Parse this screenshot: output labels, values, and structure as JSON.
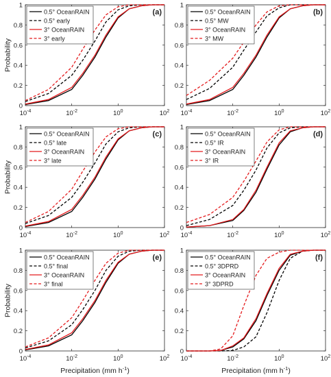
{
  "figure": {
    "xlabel": "Precipitation (mm h",
    "xlabel_sup": "-1",
    "xlabel_close": ")",
    "ylabel": "Probability"
  },
  "chart_data": [
    {
      "type": "line",
      "panel_label": "(a)",
      "xlabel": "",
      "ylabel": "Probability",
      "xscale": "log",
      "xlim": [
        0.0001,
        100
      ],
      "ylim": [
        0,
        1
      ],
      "xticks": [
        "10^-4",
        "10^-2",
        "10^0",
        "10^2"
      ],
      "yticks": [
        "0",
        "0.2",
        "0.4",
        "0.6",
        "0.8",
        "1"
      ],
      "legend_position": "top-left",
      "series": [
        {
          "name": "0.5° OceanRAIN",
          "color": "#000000",
          "dash": "solid",
          "x": [
            0.0001,
            0.001,
            0.01,
            0.03,
            0.1,
            0.3,
            1,
            3,
            10,
            30,
            100
          ],
          "y": [
            0.01,
            0.05,
            0.16,
            0.3,
            0.48,
            0.68,
            0.87,
            0.96,
            0.99,
            1.0,
            1.0
          ]
        },
        {
          "name": "0.5° early",
          "color": "#000000",
          "dash": "dashed",
          "x": [
            0.0001,
            0.001,
            0.01,
            0.03,
            0.1,
            0.3,
            1,
            3,
            10,
            30,
            100
          ],
          "y": [
            0.04,
            0.12,
            0.3,
            0.45,
            0.64,
            0.83,
            0.95,
            0.99,
            1.0,
            1.0,
            1.0
          ]
        },
        {
          "name": "3° OceanRAIN",
          "color": "#e41a1c",
          "dash": "solid",
          "x": [
            0.0001,
            0.001,
            0.01,
            0.03,
            0.1,
            0.3,
            1,
            3,
            10,
            30,
            100
          ],
          "y": [
            0.015,
            0.06,
            0.18,
            0.32,
            0.5,
            0.7,
            0.88,
            0.96,
            0.99,
            1.0,
            1.0
          ]
        },
        {
          "name": "3° early",
          "color": "#e41a1c",
          "dash": "dashed",
          "x": [
            0.0001,
            0.001,
            0.01,
            0.03,
            0.1,
            0.3,
            1,
            3,
            10,
            30,
            100
          ],
          "y": [
            0.05,
            0.16,
            0.38,
            0.56,
            0.75,
            0.9,
            0.98,
            1.0,
            1.0,
            1.0,
            1.0
          ]
        }
      ]
    },
    {
      "type": "line",
      "panel_label": "(b)",
      "xlabel": "",
      "ylabel": "",
      "xscale": "log",
      "xlim": [
        0.0001,
        100
      ],
      "ylim": [
        0,
        1
      ],
      "xticks": [
        "10^-4",
        "10^-2",
        "10^0",
        "10^2"
      ],
      "yticks": [
        "0",
        "0.2",
        "0.4",
        "0.6",
        "0.8",
        "1"
      ],
      "legend_position": "top-left",
      "series": [
        {
          "name": "0.5° OceanRAIN",
          "color": "#000000",
          "dash": "solid",
          "x": [
            0.0001,
            0.001,
            0.01,
            0.03,
            0.1,
            0.3,
            1,
            3,
            10,
            30,
            100
          ],
          "y": [
            0.01,
            0.05,
            0.16,
            0.3,
            0.48,
            0.68,
            0.87,
            0.96,
            0.99,
            1.0,
            1.0
          ]
        },
        {
          "name": "0.5° MW",
          "color": "#000000",
          "dash": "dashed",
          "x": [
            0.0001,
            0.001,
            0.01,
            0.03,
            0.1,
            0.3,
            1,
            3,
            10,
            30,
            100
          ],
          "y": [
            0.06,
            0.17,
            0.38,
            0.55,
            0.73,
            0.89,
            0.97,
            1.0,
            1.0,
            1.0,
            1.0
          ]
        },
        {
          "name": "3° OceanRAIN",
          "color": "#e41a1c",
          "dash": "solid",
          "x": [
            0.0001,
            0.001,
            0.01,
            0.03,
            0.1,
            0.3,
            1,
            3,
            10,
            30,
            100
          ],
          "y": [
            0.015,
            0.06,
            0.18,
            0.32,
            0.5,
            0.7,
            0.88,
            0.96,
            0.99,
            1.0,
            1.0
          ]
        },
        {
          "name": "3° MW",
          "color": "#e41a1c",
          "dash": "dashed",
          "x": [
            0.0001,
            0.001,
            0.01,
            0.03,
            0.1,
            0.3,
            1,
            3,
            10,
            30,
            100
          ],
          "y": [
            0.1,
            0.25,
            0.47,
            0.63,
            0.8,
            0.93,
            0.99,
            1.0,
            1.0,
            1.0,
            1.0
          ]
        }
      ]
    },
    {
      "type": "line",
      "panel_label": "(c)",
      "xlabel": "",
      "ylabel": "Probability",
      "xscale": "log",
      "xlim": [
        0.0001,
        100
      ],
      "ylim": [
        0,
        1
      ],
      "xticks": [
        "10^-4",
        "10^-2",
        "10^0",
        "10^2"
      ],
      "yticks": [
        "0",
        "0.2",
        "0.4",
        "0.6",
        "0.8",
        "1"
      ],
      "legend_position": "top-left",
      "series": [
        {
          "name": "0.5° OceanRAIN",
          "color": "#000000",
          "dash": "solid",
          "x": [
            0.0001,
            0.001,
            0.01,
            0.03,
            0.1,
            0.3,
            1,
            3,
            10,
            30,
            100
          ],
          "y": [
            0.01,
            0.05,
            0.16,
            0.3,
            0.48,
            0.68,
            0.87,
            0.96,
            0.99,
            1.0,
            1.0
          ]
        },
        {
          "name": "0.5° late",
          "color": "#000000",
          "dash": "dashed",
          "x": [
            0.0001,
            0.001,
            0.01,
            0.03,
            0.1,
            0.3,
            1,
            3,
            10,
            30,
            100
          ],
          "y": [
            0.04,
            0.12,
            0.3,
            0.45,
            0.64,
            0.83,
            0.95,
            0.99,
            1.0,
            1.0,
            1.0
          ]
        },
        {
          "name": "3° OceanRAIN",
          "color": "#e41a1c",
          "dash": "solid",
          "x": [
            0.0001,
            0.001,
            0.01,
            0.03,
            0.1,
            0.3,
            1,
            3,
            10,
            30,
            100
          ],
          "y": [
            0.015,
            0.06,
            0.18,
            0.32,
            0.5,
            0.7,
            0.88,
            0.96,
            0.99,
            1.0,
            1.0
          ]
        },
        {
          "name": "3° late",
          "color": "#e41a1c",
          "dash": "dashed",
          "x": [
            0.0001,
            0.001,
            0.01,
            0.03,
            0.1,
            0.3,
            1,
            3,
            10,
            30,
            100
          ],
          "y": [
            0.05,
            0.16,
            0.38,
            0.56,
            0.75,
            0.9,
            0.98,
            1.0,
            1.0,
            1.0,
            1.0
          ]
        }
      ]
    },
    {
      "type": "line",
      "panel_label": "(d)",
      "xlabel": "",
      "ylabel": "",
      "xscale": "log",
      "xlim": [
        0.0001,
        100
      ],
      "ylim": [
        0,
        1
      ],
      "xticks": [
        "10^-4",
        "10^-2",
        "10^0",
        "10^2"
      ],
      "yticks": [
        "0",
        "0.2",
        "0.4",
        "0.6",
        "0.8",
        "1"
      ],
      "legend_position": "top-left",
      "series": [
        {
          "name": "0.5° OceanRAIN",
          "color": "#000000",
          "dash": "solid",
          "x": [
            0.0001,
            0.001,
            0.01,
            0.03,
            0.1,
            0.3,
            1,
            3,
            10,
            30,
            100
          ],
          "y": [
            0.005,
            0.02,
            0.07,
            0.17,
            0.35,
            0.58,
            0.82,
            0.95,
            0.99,
            1.0,
            1.0
          ]
        },
        {
          "name": "0.5° IR",
          "color": "#000000",
          "dash": "dashed",
          "x": [
            0.0001,
            0.001,
            0.01,
            0.03,
            0.1,
            0.3,
            1,
            3,
            10,
            30,
            100
          ],
          "y": [
            0.02,
            0.08,
            0.22,
            0.37,
            0.57,
            0.79,
            0.94,
            0.99,
            1.0,
            1.0,
            1.0
          ]
        },
        {
          "name": "3° OceanRAIN",
          "color": "#e41a1c",
          "dash": "solid",
          "x": [
            0.0001,
            0.001,
            0.01,
            0.03,
            0.1,
            0.3,
            1,
            3,
            10,
            30,
            100
          ],
          "y": [
            0.005,
            0.02,
            0.08,
            0.18,
            0.37,
            0.6,
            0.84,
            0.96,
            0.99,
            1.0,
            1.0
          ]
        },
        {
          "name": "3° IR",
          "color": "#e41a1c",
          "dash": "dashed",
          "x": [
            0.0001,
            0.001,
            0.01,
            0.03,
            0.1,
            0.3,
            1,
            3,
            10,
            30,
            100
          ],
          "y": [
            0.05,
            0.13,
            0.3,
            0.46,
            0.66,
            0.85,
            0.97,
            1.0,
            1.0,
            1.0,
            1.0
          ]
        }
      ]
    },
    {
      "type": "line",
      "panel_label": "(e)",
      "xlabel": "Precipitation (mm h-1)",
      "ylabel": "Probability",
      "xscale": "log",
      "xlim": [
        0.0001,
        100
      ],
      "ylim": [
        0,
        1
      ],
      "xticks": [
        "10^-4",
        "10^-2",
        "10^0",
        "10^2"
      ],
      "yticks": [
        "0",
        "0.2",
        "0.4",
        "0.6",
        "0.8",
        "1"
      ],
      "legend_position": "top-left",
      "series": [
        {
          "name": "0.5° OceanRAIN",
          "color": "#000000",
          "dash": "solid",
          "x": [
            0.0001,
            0.001,
            0.01,
            0.03,
            0.1,
            0.3,
            1,
            3,
            10,
            30,
            100
          ],
          "y": [
            0.01,
            0.05,
            0.16,
            0.3,
            0.48,
            0.68,
            0.87,
            0.96,
            0.99,
            1.0,
            1.0
          ]
        },
        {
          "name": "0.5° final",
          "color": "#000000",
          "dash": "dashed",
          "x": [
            0.0001,
            0.001,
            0.01,
            0.03,
            0.1,
            0.3,
            1,
            3,
            10,
            30,
            100
          ],
          "y": [
            0.03,
            0.1,
            0.26,
            0.41,
            0.6,
            0.8,
            0.94,
            0.99,
            1.0,
            1.0,
            1.0
          ]
        },
        {
          "name": "3° OceanRAIN",
          "color": "#e41a1c",
          "dash": "solid",
          "x": [
            0.0001,
            0.001,
            0.01,
            0.03,
            0.1,
            0.3,
            1,
            3,
            10,
            30,
            100
          ],
          "y": [
            0.015,
            0.06,
            0.18,
            0.32,
            0.5,
            0.7,
            0.88,
            0.96,
            0.99,
            1.0,
            1.0
          ]
        },
        {
          "name": "3° final",
          "color": "#e41a1c",
          "dash": "dashed",
          "x": [
            0.0001,
            0.001,
            0.01,
            0.03,
            0.1,
            0.3,
            1,
            3,
            10,
            30,
            100
          ],
          "y": [
            0.04,
            0.13,
            0.33,
            0.5,
            0.7,
            0.87,
            0.97,
            1.0,
            1.0,
            1.0,
            1.0
          ]
        }
      ]
    },
    {
      "type": "line",
      "panel_label": "(f)",
      "xlabel": "Precipitation (mm h-1)",
      "ylabel": "",
      "xscale": "log",
      "xlim": [
        0.0001,
        100
      ],
      "ylim": [
        0,
        1
      ],
      "xticks": [
        "10^-4",
        "10^-2",
        "10^0",
        "10^2"
      ],
      "yticks": [
        "0",
        "0.2",
        "0.4",
        "0.6",
        "0.8",
        "1"
      ],
      "legend_position": "top-left",
      "series": [
        {
          "name": "0.5° OceanRAIN",
          "color": "#000000",
          "dash": "solid",
          "x": [
            0.0001,
            0.001,
            0.003,
            0.01,
            0.03,
            0.1,
            0.3,
            1,
            3,
            10,
            30,
            100
          ],
          "y": [
            0.0,
            0.0,
            0.005,
            0.04,
            0.12,
            0.3,
            0.55,
            0.8,
            0.95,
            0.99,
            1.0,
            1.0
          ]
        },
        {
          "name": "0.5° 3DPRD",
          "color": "#000000",
          "dash": "dashed",
          "x": [
            0.0001,
            0.001,
            0.003,
            0.01,
            0.03,
            0.1,
            0.3,
            1,
            3,
            10,
            30,
            100
          ],
          "y": [
            0.0,
            0.0,
            0.0,
            0.005,
            0.04,
            0.14,
            0.38,
            0.7,
            0.92,
            0.99,
            1.0,
            1.0
          ]
        },
        {
          "name": "3° OceanRAIN",
          "color": "#e41a1c",
          "dash": "solid",
          "x": [
            0.0001,
            0.001,
            0.003,
            0.01,
            0.03,
            0.1,
            0.3,
            1,
            3,
            10,
            30,
            100
          ],
          "y": [
            0.0,
            0.0,
            0.005,
            0.05,
            0.13,
            0.32,
            0.57,
            0.82,
            0.96,
            0.99,
            1.0,
            1.0
          ]
        },
        {
          "name": "3° 3DPRD",
          "color": "#e41a1c",
          "dash": "dashed",
          "x": [
            0.0001,
            0.001,
            0.003,
            0.01,
            0.03,
            0.1,
            0.3,
            1,
            3,
            10,
            30,
            100
          ],
          "y": [
            0.0,
            0.0,
            0.02,
            0.15,
            0.45,
            0.75,
            0.92,
            0.98,
            1.0,
            1.0,
            1.0,
            1.0
          ]
        }
      ]
    }
  ]
}
